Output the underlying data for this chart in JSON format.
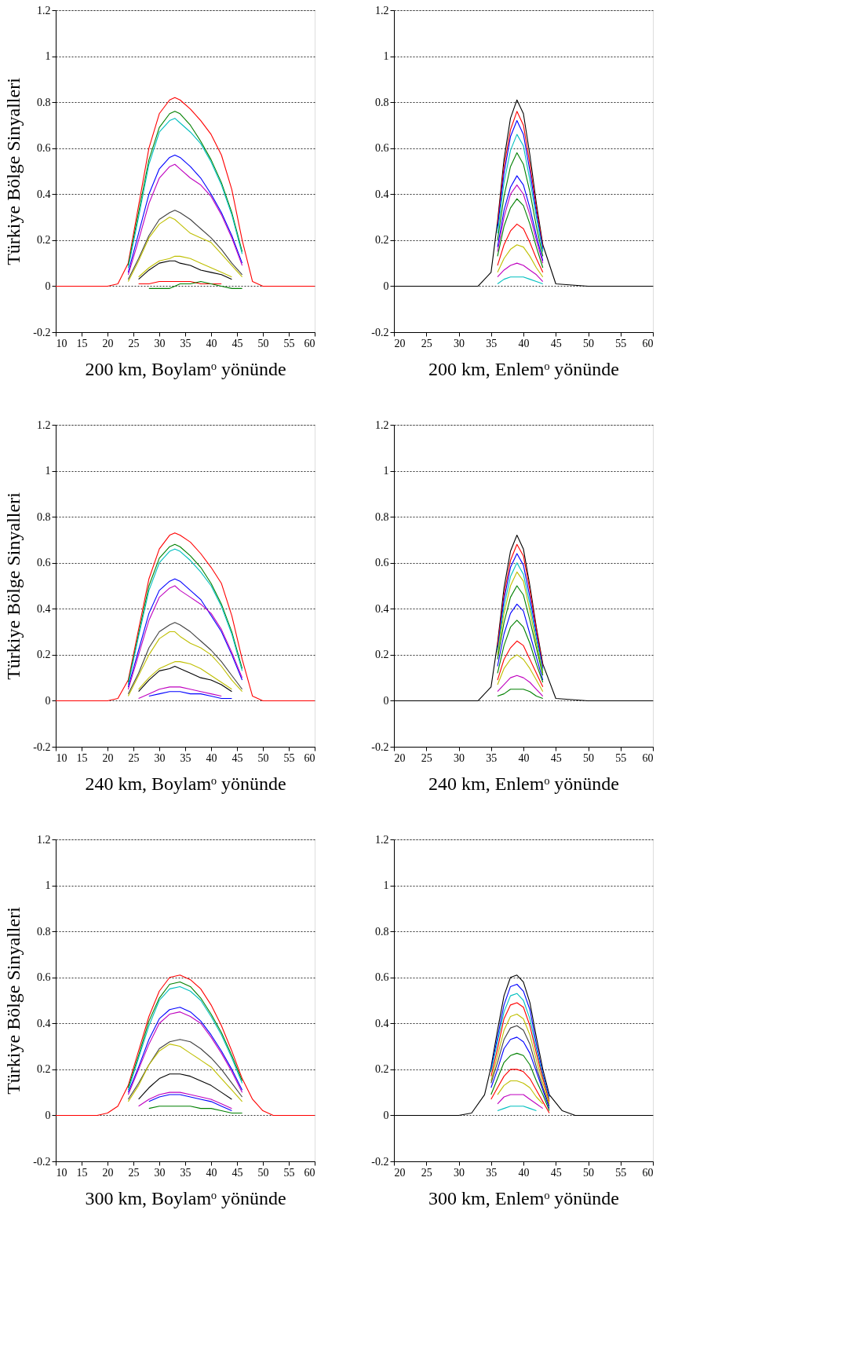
{
  "chart_data": [
    {
      "type": "line",
      "xlabel": "200 km, Boylamᵒ yönünde",
      "ylabel": "Türkiye Bölge Sinyalleri",
      "xlim": [
        10,
        60
      ],
      "xticks": [
        10,
        15,
        20,
        25,
        30,
        35,
        40,
        45,
        50,
        55,
        60
      ],
      "ylim": [
        -0.2,
        1.2
      ],
      "yticks": [
        -0.2,
        0,
        0.2,
        0.4,
        0.6,
        0.8,
        1,
        1.2
      ],
      "grid": "y",
      "line_style": "solid",
      "x": [
        24,
        26,
        28,
        30,
        32,
        33,
        34,
        36,
        38,
        40,
        42,
        44,
        46
      ],
      "series": [
        {
          "color": "#ff0000",
          "x": [
            10,
            20,
            22,
            24,
            26,
            28,
            30,
            32,
            33,
            34,
            36,
            38,
            40,
            42,
            44,
            46,
            48,
            50,
            60
          ],
          "values": [
            0,
            0,
            0.01,
            0.1,
            0.35,
            0.6,
            0.75,
            0.81,
            0.82,
            0.81,
            0.77,
            0.72,
            0.66,
            0.57,
            0.42,
            0.2,
            0.02,
            0,
            0
          ]
        },
        {
          "color": "#008000",
          "values": [
            0.09,
            0.32,
            0.55,
            0.69,
            0.75,
            0.76,
            0.75,
            0.7,
            0.63,
            0.55,
            0.45,
            0.32,
            0.15
          ]
        },
        {
          "color": "#00bfbf",
          "values": [
            0.08,
            0.3,
            0.53,
            0.67,
            0.72,
            0.73,
            0.71,
            0.67,
            0.62,
            0.54,
            0.44,
            0.31,
            0.14
          ]
        },
        {
          "color": "#0000ff",
          "values": [
            0.06,
            0.23,
            0.4,
            0.51,
            0.56,
            0.57,
            0.56,
            0.52,
            0.47,
            0.4,
            0.32,
            0.22,
            0.1
          ]
        },
        {
          "color": "#bf00bf",
          "values": [
            0.05,
            0.2,
            0.36,
            0.47,
            0.52,
            0.53,
            0.51,
            0.47,
            0.44,
            0.39,
            0.31,
            0.21,
            0.09
          ]
        },
        {
          "color": "#404040",
          "values": [
            0.03,
            0.12,
            0.22,
            0.29,
            0.32,
            0.33,
            0.32,
            0.29,
            0.25,
            0.21,
            0.16,
            0.1,
            0.05
          ]
        },
        {
          "color": "#bfbf00",
          "values": [
            0.02,
            0.11,
            0.21,
            0.27,
            0.3,
            0.29,
            0.27,
            0.23,
            0.21,
            0.19,
            0.14,
            0.09,
            0.04
          ]
        },
        {
          "color": "#bfbf00",
          "x": [
            26,
            28,
            30,
            32,
            33,
            34,
            36,
            38,
            40,
            42,
            44
          ],
          "values": [
            0.04,
            0.08,
            0.11,
            0.12,
            0.13,
            0.13,
            0.12,
            0.1,
            0.08,
            0.06,
            0.04
          ]
        },
        {
          "color": "#000000",
          "x": [
            26,
            28,
            30,
            32,
            33,
            34,
            36,
            38,
            40,
            42,
            44
          ],
          "values": [
            0.03,
            0.07,
            0.1,
            0.11,
            0.11,
            0.1,
            0.09,
            0.07,
            0.06,
            0.05,
            0.03
          ]
        },
        {
          "color": "#ff0000",
          "x": [
            26,
            28,
            30,
            32,
            33,
            34,
            36,
            38,
            40,
            42
          ],
          "values": [
            0.01,
            0.01,
            0.02,
            0.02,
            0.02,
            0.02,
            0.02,
            0.01,
            0.01,
            0.01
          ]
        },
        {
          "color": "#008000",
          "x": [
            28,
            30,
            32,
            33,
            34,
            36,
            38,
            40,
            42,
            44,
            46
          ],
          "values": [
            -0.01,
            -0.01,
            -0.01,
            0,
            0.01,
            0.01,
            0.02,
            0.01,
            0,
            -0.01,
            -0.01
          ]
        }
      ]
    },
    {
      "type": "line",
      "xlabel": "200 km, Enlemᵒ yönünde",
      "xlim": [
        20,
        60
      ],
      "xticks": [
        20,
        25,
        30,
        35,
        40,
        45,
        50,
        55,
        60
      ],
      "ylim": [
        -0.2,
        1.2
      ],
      "yticks": [
        -0.2,
        0,
        0.2,
        0.4,
        0.6,
        0.8,
        1,
        1.2
      ],
      "grid": "y",
      "line_style": "solid",
      "x": [
        36,
        37,
        38,
        39,
        40,
        41,
        42,
        43
      ],
      "series": [
        {
          "color": "#000000",
          "x": [
            20,
            30,
            33,
            35,
            36,
            37,
            38,
            39,
            40,
            41,
            42,
            43,
            45,
            50,
            60
          ],
          "values": [
            0,
            0,
            0,
            0.06,
            0.28,
            0.55,
            0.73,
            0.81,
            0.75,
            0.57,
            0.36,
            0.18,
            0.01,
            0,
            0
          ]
        },
        {
          "color": "#ff0000",
          "values": [
            0.27,
            0.52,
            0.68,
            0.76,
            0.7,
            0.53,
            0.34,
            0.17
          ]
        },
        {
          "color": "#0000ff",
          "values": [
            0.25,
            0.49,
            0.65,
            0.72,
            0.66,
            0.5,
            0.32,
            0.16
          ]
        },
        {
          "color": "#00bfbf",
          "values": [
            0.23,
            0.45,
            0.59,
            0.66,
            0.61,
            0.46,
            0.3,
            0.15
          ]
        },
        {
          "color": "#008000",
          "values": [
            0.2,
            0.39,
            0.52,
            0.58,
            0.53,
            0.41,
            0.26,
            0.13
          ]
        },
        {
          "color": "#0000ff",
          "values": [
            0.17,
            0.33,
            0.43,
            0.48,
            0.44,
            0.34,
            0.22,
            0.11
          ]
        },
        {
          "color": "#bf00bf",
          "values": [
            0.15,
            0.3,
            0.4,
            0.44,
            0.4,
            0.31,
            0.2,
            0.1
          ]
        },
        {
          "color": "#008000",
          "values": [
            0.13,
            0.26,
            0.34,
            0.38,
            0.35,
            0.27,
            0.17,
            0.08
          ]
        },
        {
          "color": "#ff0000",
          "values": [
            0.09,
            0.18,
            0.24,
            0.27,
            0.25,
            0.19,
            0.12,
            0.06
          ]
        },
        {
          "color": "#bfbf00",
          "values": [
            0.06,
            0.12,
            0.16,
            0.18,
            0.17,
            0.13,
            0.08,
            0.04
          ]
        },
        {
          "color": "#bf00bf",
          "values": [
            0.04,
            0.07,
            0.09,
            0.1,
            0.09,
            0.07,
            0.05,
            0.02
          ]
        },
        {
          "color": "#00bfbf",
          "values": [
            0.01,
            0.03,
            0.04,
            0.04,
            0.04,
            0.03,
            0.02,
            0.01
          ]
        }
      ]
    },
    {
      "type": "line",
      "xlabel": "240 km, Boylamᵒ yönünde",
      "ylabel": "Türkiye Bölge Sinyalleri",
      "xlim": [
        10,
        60
      ],
      "xticks": [
        10,
        15,
        20,
        25,
        30,
        35,
        40,
        45,
        50,
        55,
        60
      ],
      "ylim": [
        -0.2,
        1.2
      ],
      "yticks": [
        -0.2,
        0,
        0.2,
        0.4,
        0.6,
        0.8,
        1,
        1.2
      ],
      "grid": "y",
      "line_style": "solid",
      "x": [
        24,
        26,
        28,
        30,
        32,
        33,
        34,
        36,
        38,
        40,
        42,
        44,
        46
      ],
      "series": [
        {
          "color": "#ff0000",
          "x": [
            10,
            20,
            22,
            24,
            26,
            28,
            30,
            32,
            33,
            34,
            36,
            38,
            40,
            42,
            44,
            46,
            48,
            50,
            60
          ],
          "values": [
            0,
            0,
            0.01,
            0.09,
            0.31,
            0.53,
            0.66,
            0.72,
            0.73,
            0.72,
            0.69,
            0.64,
            0.58,
            0.51,
            0.37,
            0.18,
            0.02,
            0,
            0
          ]
        },
        {
          "color": "#008000",
          "values": [
            0.08,
            0.29,
            0.5,
            0.62,
            0.67,
            0.68,
            0.67,
            0.63,
            0.58,
            0.51,
            0.42,
            0.3,
            0.14
          ]
        },
        {
          "color": "#00bfbf",
          "values": [
            0.07,
            0.28,
            0.48,
            0.6,
            0.65,
            0.66,
            0.65,
            0.61,
            0.56,
            0.5,
            0.41,
            0.29,
            0.13
          ]
        },
        {
          "color": "#0000ff",
          "values": [
            0.06,
            0.22,
            0.38,
            0.48,
            0.52,
            0.53,
            0.52,
            0.48,
            0.44,
            0.37,
            0.3,
            0.2,
            0.09
          ]
        },
        {
          "color": "#bf00bf",
          "values": [
            0.05,
            0.2,
            0.35,
            0.45,
            0.49,
            0.5,
            0.48,
            0.45,
            0.42,
            0.38,
            0.31,
            0.21,
            0.1
          ]
        },
        {
          "color": "#404040",
          "values": [
            0.03,
            0.12,
            0.23,
            0.3,
            0.33,
            0.34,
            0.33,
            0.3,
            0.26,
            0.22,
            0.17,
            0.11,
            0.05
          ]
        },
        {
          "color": "#bfbf00",
          "values": [
            0.02,
            0.11,
            0.2,
            0.27,
            0.3,
            0.3,
            0.28,
            0.25,
            0.23,
            0.2,
            0.15,
            0.09,
            0.04
          ]
        },
        {
          "color": "#bfbf00",
          "x": [
            26,
            28,
            30,
            32,
            33,
            34,
            36,
            38,
            40,
            42,
            44
          ],
          "values": [
            0.05,
            0.1,
            0.14,
            0.16,
            0.17,
            0.17,
            0.16,
            0.14,
            0.11,
            0.08,
            0.05
          ]
        },
        {
          "color": "#000000",
          "x": [
            26,
            28,
            30,
            32,
            33,
            34,
            36,
            38,
            40,
            42,
            44
          ],
          "values": [
            0.04,
            0.09,
            0.13,
            0.14,
            0.15,
            0.14,
            0.12,
            0.1,
            0.09,
            0.07,
            0.04
          ]
        },
        {
          "color": "#bf00bf",
          "x": [
            26,
            28,
            30,
            32,
            33,
            34,
            36,
            38,
            40,
            42
          ],
          "values": [
            0.01,
            0.03,
            0.05,
            0.06,
            0.06,
            0.06,
            0.05,
            0.04,
            0.03,
            0.02
          ]
        },
        {
          "color": "#0000ff",
          "x": [
            28,
            30,
            32,
            33,
            34,
            36,
            38,
            40,
            42,
            44
          ],
          "values": [
            0.02,
            0.03,
            0.04,
            0.04,
            0.04,
            0.03,
            0.03,
            0.02,
            0.01,
            0.01
          ]
        }
      ]
    },
    {
      "type": "line",
      "xlabel": "240 km, Enlemᵒ yönünde",
      "xlim": [
        20,
        60
      ],
      "xticks": [
        20,
        25,
        30,
        35,
        40,
        45,
        50,
        55,
        60
      ],
      "ylim": [
        -0.2,
        1.2
      ],
      "yticks": [
        -0.2,
        0,
        0.2,
        0.4,
        0.6,
        0.8,
        1,
        1.2
      ],
      "grid": "y",
      "line_style": "solid",
      "x": [
        36,
        37,
        38,
        39,
        40,
        41,
        42,
        43
      ],
      "series": [
        {
          "color": "#000000",
          "x": [
            20,
            30,
            33,
            35,
            36,
            37,
            38,
            39,
            40,
            41,
            42,
            43,
            45,
            50,
            60
          ],
          "values": [
            0,
            0,
            0,
            0.06,
            0.25,
            0.49,
            0.65,
            0.72,
            0.66,
            0.5,
            0.32,
            0.16,
            0.01,
            0,
            0
          ]
        },
        {
          "color": "#ff0000",
          "values": [
            0.24,
            0.46,
            0.61,
            0.68,
            0.63,
            0.48,
            0.31,
            0.15
          ]
        },
        {
          "color": "#0000ff",
          "values": [
            0.22,
            0.44,
            0.58,
            0.64,
            0.59,
            0.45,
            0.29,
            0.14
          ]
        },
        {
          "color": "#00bfbf",
          "values": [
            0.21,
            0.41,
            0.54,
            0.6,
            0.55,
            0.42,
            0.27,
            0.13
          ]
        },
        {
          "color": "#bfbf00",
          "values": [
            0.2,
            0.38,
            0.5,
            0.56,
            0.52,
            0.39,
            0.25,
            0.12
          ]
        },
        {
          "color": "#008000",
          "values": [
            0.18,
            0.34,
            0.45,
            0.5,
            0.46,
            0.35,
            0.23,
            0.11
          ]
        },
        {
          "color": "#0000ff",
          "values": [
            0.15,
            0.29,
            0.38,
            0.42,
            0.39,
            0.29,
            0.19,
            0.09
          ]
        },
        {
          "color": "#008000",
          "values": [
            0.12,
            0.24,
            0.32,
            0.35,
            0.32,
            0.25,
            0.16,
            0.08
          ]
        },
        {
          "color": "#ff0000",
          "values": [
            0.09,
            0.18,
            0.23,
            0.26,
            0.24,
            0.18,
            0.12,
            0.06
          ]
        },
        {
          "color": "#bfbf00",
          "values": [
            0.07,
            0.14,
            0.18,
            0.2,
            0.18,
            0.14,
            0.09,
            0.04
          ]
        },
        {
          "color": "#bf00bf",
          "values": [
            0.04,
            0.07,
            0.1,
            0.11,
            0.1,
            0.08,
            0.05,
            0.02
          ]
        },
        {
          "color": "#008000",
          "values": [
            0.02,
            0.03,
            0.05,
            0.05,
            0.05,
            0.04,
            0.02,
            0.01
          ]
        }
      ]
    },
    {
      "type": "line",
      "xlabel": "300 km, Boylamᵒ yönünde",
      "ylabel": "Türkiye Bölge Sinyalleri",
      "xlim": [
        10,
        60
      ],
      "xticks": [
        10,
        15,
        20,
        25,
        30,
        35,
        40,
        45,
        50,
        55,
        60
      ],
      "ylim": [
        -0.2,
        1.2
      ],
      "yticks": [
        -0.2,
        0,
        0.2,
        0.4,
        0.6,
        0.8,
        1,
        1.2
      ],
      "grid": "y",
      "line_style": "solid",
      "x": [
        24,
        26,
        28,
        30,
        32,
        34,
        36,
        38,
        40,
        42,
        44,
        46
      ],
      "series": [
        {
          "color": "#ff0000",
          "x": [
            10,
            18,
            20,
            22,
            24,
            26,
            28,
            30,
            32,
            34,
            36,
            38,
            40,
            42,
            44,
            46,
            48,
            50,
            52,
            60
          ],
          "values": [
            0,
            0,
            0.01,
            0.04,
            0.13,
            0.28,
            0.43,
            0.54,
            0.6,
            0.61,
            0.59,
            0.55,
            0.48,
            0.39,
            0.28,
            0.16,
            0.07,
            0.02,
            0,
            0
          ]
        },
        {
          "color": "#008000",
          "values": [
            0.12,
            0.26,
            0.41,
            0.51,
            0.57,
            0.58,
            0.56,
            0.51,
            0.44,
            0.36,
            0.26,
            0.15
          ]
        },
        {
          "color": "#00bfbf",
          "values": [
            0.11,
            0.25,
            0.39,
            0.5,
            0.55,
            0.56,
            0.54,
            0.5,
            0.43,
            0.35,
            0.25,
            0.14
          ]
        },
        {
          "color": "#0000ff",
          "values": [
            0.1,
            0.21,
            0.33,
            0.42,
            0.46,
            0.47,
            0.45,
            0.41,
            0.35,
            0.28,
            0.2,
            0.11
          ]
        },
        {
          "color": "#bf00bf",
          "values": [
            0.09,
            0.2,
            0.31,
            0.4,
            0.44,
            0.45,
            0.43,
            0.4,
            0.34,
            0.27,
            0.19,
            0.1
          ]
        },
        {
          "color": "#404040",
          "values": [
            0.07,
            0.14,
            0.22,
            0.29,
            0.32,
            0.33,
            0.32,
            0.29,
            0.25,
            0.2,
            0.14,
            0.08
          ]
        },
        {
          "color": "#bfbf00",
          "values": [
            0.06,
            0.13,
            0.22,
            0.28,
            0.31,
            0.3,
            0.27,
            0.24,
            0.21,
            0.16,
            0.11,
            0.06
          ]
        },
        {
          "color": "#000000",
          "x": [
            26,
            28,
            30,
            32,
            34,
            36,
            38,
            40,
            42,
            44
          ],
          "values": [
            0.07,
            0.12,
            0.16,
            0.18,
            0.18,
            0.17,
            0.15,
            0.13,
            0.1,
            0.07
          ]
        },
        {
          "color": "#bf00bf",
          "x": [
            26,
            28,
            30,
            32,
            34,
            36,
            38,
            40,
            42,
            44
          ],
          "values": [
            0.04,
            0.07,
            0.09,
            0.1,
            0.1,
            0.09,
            0.08,
            0.07,
            0.05,
            0.03
          ]
        },
        {
          "color": "#0000ff",
          "x": [
            28,
            30,
            32,
            34,
            36,
            38,
            40,
            42,
            44
          ],
          "values": [
            0.06,
            0.08,
            0.09,
            0.09,
            0.08,
            0.07,
            0.06,
            0.04,
            0.02
          ]
        },
        {
          "color": "#008000",
          "x": [
            28,
            30,
            32,
            34,
            36,
            38,
            40,
            42,
            44,
            46
          ],
          "values": [
            0.03,
            0.04,
            0.04,
            0.04,
            0.04,
            0.03,
            0.03,
            0.02,
            0.01,
            0.01
          ]
        }
      ]
    },
    {
      "type": "line",
      "xlabel": "300 km, Enlemᵒ yönünde",
      "xlim": [
        20,
        60
      ],
      "xticks": [
        20,
        25,
        30,
        35,
        40,
        45,
        50,
        55,
        60
      ],
      "ylim": [
        -0.2,
        1.2
      ],
      "yticks": [
        -0.2,
        0,
        0.2,
        0.4,
        0.6,
        0.8,
        1,
        1.2
      ],
      "grid": "y",
      "line_style": "solid",
      "x": [
        35,
        36,
        37,
        38,
        39,
        40,
        41,
        42,
        43,
        44
      ],
      "series": [
        {
          "color": "#000000",
          "x": [
            20,
            30,
            32,
            34,
            35,
            36,
            37,
            38,
            39,
            40,
            41,
            42,
            43,
            44,
            46,
            48,
            60
          ],
          "values": [
            0,
            0,
            0.01,
            0.09,
            0.21,
            0.37,
            0.52,
            0.6,
            0.61,
            0.58,
            0.49,
            0.34,
            0.2,
            0.09,
            0.02,
            0,
            0
          ]
        },
        {
          "color": "#0000ff",
          "values": [
            0.2,
            0.34,
            0.48,
            0.56,
            0.57,
            0.54,
            0.46,
            0.31,
            0.18,
            0.08
          ]
        },
        {
          "color": "#00bfbf",
          "values": [
            0.19,
            0.32,
            0.45,
            0.52,
            0.53,
            0.5,
            0.42,
            0.29,
            0.17,
            0.07
          ]
        },
        {
          "color": "#ff0000",
          "values": [
            0.17,
            0.29,
            0.42,
            0.48,
            0.49,
            0.47,
            0.39,
            0.27,
            0.16,
            0.06
          ]
        },
        {
          "color": "#bfbf00",
          "values": [
            0.15,
            0.26,
            0.37,
            0.43,
            0.44,
            0.42,
            0.35,
            0.24,
            0.14,
            0.05
          ]
        },
        {
          "color": "#404040",
          "values": [
            0.14,
            0.23,
            0.33,
            0.38,
            0.39,
            0.37,
            0.31,
            0.21,
            0.12,
            0.04
          ]
        },
        {
          "color": "#0000ff",
          "values": [
            0.12,
            0.2,
            0.29,
            0.33,
            0.34,
            0.32,
            0.27,
            0.19,
            0.11,
            0.03
          ]
        },
        {
          "color": "#008000",
          "values": [
            0.09,
            0.16,
            0.23,
            0.26,
            0.27,
            0.26,
            0.22,
            0.15,
            0.09,
            0.02
          ]
        },
        {
          "color": "#ff0000",
          "values": [
            0.07,
            0.12,
            0.17,
            0.2,
            0.2,
            0.19,
            0.16,
            0.11,
            0.06,
            0.01
          ]
        },
        {
          "color": "#bfbf00",
          "x": [
            36,
            37,
            38,
            39,
            40,
            41,
            42,
            43
          ],
          "values": [
            0.09,
            0.13,
            0.15,
            0.15,
            0.14,
            0.12,
            0.08,
            0.05
          ]
        },
        {
          "color": "#bf00bf",
          "x": [
            36,
            37,
            38,
            39,
            40,
            41,
            42,
            43
          ],
          "values": [
            0.05,
            0.08,
            0.09,
            0.09,
            0.09,
            0.07,
            0.05,
            0.03
          ]
        },
        {
          "color": "#00bfbf",
          "x": [
            36,
            37,
            38,
            39,
            40,
            41,
            42
          ],
          "values": [
            0.02,
            0.03,
            0.04,
            0.04,
            0.04,
            0.03,
            0.02
          ]
        }
      ]
    }
  ]
}
